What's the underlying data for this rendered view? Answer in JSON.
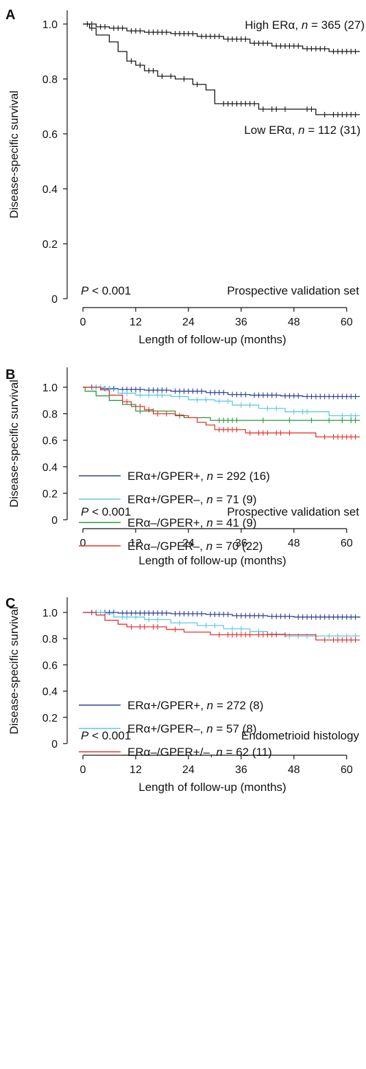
{
  "chart_data": [
    {
      "type": "line",
      "panel": "A",
      "xlabel": "Length of follow-up (months)",
      "ylabel": "Disease-specific survival",
      "xticks": [
        0,
        12,
        24,
        36,
        48,
        60
      ],
      "yticks": [
        "0",
        "0.2",
        "0.4",
        "0.6",
        "0.8",
        "1.0"
      ],
      "xlim": [
        0,
        63
      ],
      "ylim": [
        0,
        1.05
      ],
      "legend": "none",
      "pvalue": {
        "P": "P",
        "text": " < 0.001"
      },
      "set_label": "Prospective validation set",
      "series": [
        {
          "label": {
            "pre": "High ERα, ",
            "n": "n",
            "post": " = 365 (27)"
          },
          "color": "#111111",
          "steps": [
            [
              0,
              1.0
            ],
            [
              3,
              0.99
            ],
            [
              6,
              0.985
            ],
            [
              10,
              0.975
            ],
            [
              14,
              0.97
            ],
            [
              20,
              0.965
            ],
            [
              26,
              0.955
            ],
            [
              32,
              0.945
            ],
            [
              38,
              0.93
            ],
            [
              43,
              0.92
            ],
            [
              50,
              0.91
            ],
            [
              56,
              0.9
            ],
            [
              63,
              0.9
            ]
          ],
          "censor": [
            1,
            2,
            4,
            5,
            7,
            8,
            9,
            11,
            12,
            13,
            15,
            16,
            17,
            18,
            19,
            21,
            22,
            23,
            24,
            25,
            27,
            28,
            29,
            30,
            31,
            33,
            34,
            35,
            36,
            37,
            39,
            40,
            41,
            42,
            44,
            45,
            46,
            47,
            48,
            49,
            51,
            52,
            53,
            54,
            55,
            57,
            58,
            59,
            60,
            61,
            62
          ]
        },
        {
          "label": {
            "pre": "Low ERα, ",
            "n": "n",
            "post": " = 112 (31)"
          },
          "color": "#111111",
          "steps": [
            [
              0,
              1.0
            ],
            [
              1.5,
              0.985
            ],
            [
              3,
              0.96
            ],
            [
              6,
              0.935
            ],
            [
              8,
              0.9
            ],
            [
              10,
              0.865
            ],
            [
              12,
              0.85
            ],
            [
              14,
              0.83
            ],
            [
              17,
              0.81
            ],
            [
              21,
              0.8
            ],
            [
              25,
              0.78
            ],
            [
              28,
              0.76
            ],
            [
              30,
              0.71
            ],
            [
              40,
              0.69
            ],
            [
              53,
              0.67
            ],
            [
              63,
              0.67
            ]
          ],
          "censor": [
            2,
            11,
            13,
            15,
            16,
            18,
            20,
            23,
            26,
            32,
            33,
            34,
            35,
            36,
            37,
            38,
            39,
            41,
            43,
            44,
            46,
            51,
            52,
            55,
            57,
            58,
            59,
            60,
            61,
            62
          ]
        }
      ]
    },
    {
      "type": "line",
      "panel": "B",
      "xlabel": "Length of follow-up (months)",
      "ylabel": "Disease-specific survival",
      "xticks": [
        0,
        12,
        24,
        36,
        48,
        60
      ],
      "yticks": [
        "0",
        "0.2",
        "0.4",
        "0.6",
        "0.8",
        "1.0"
      ],
      "xlim": [
        0,
        63
      ],
      "ylim": [
        0,
        1.05
      ],
      "legend": "lower-left",
      "pvalue": {
        "P": "P",
        "text": " < 0.001"
      },
      "set_label": "Prospective validation set",
      "series": [
        {
          "label": {
            "pre": "ERα+/GPER+, ",
            "n": "n",
            "post": " = 292 (16)"
          },
          "color": "#2b3f95",
          "steps": [
            [
              0,
              1.0
            ],
            [
              4,
              0.99
            ],
            [
              8,
              0.983
            ],
            [
              14,
              0.978
            ],
            [
              20,
              0.97
            ],
            [
              28,
              0.96
            ],
            [
              33,
              0.945
            ],
            [
              38,
              0.94
            ],
            [
              45,
              0.935
            ],
            [
              50,
              0.93
            ],
            [
              63,
              0.93
            ]
          ],
          "censor": [
            2,
            3,
            5,
            6,
            7,
            9,
            10,
            11,
            12,
            13,
            15,
            16,
            17,
            18,
            19,
            21,
            22,
            23,
            24,
            25,
            26,
            27,
            29,
            30,
            31,
            32,
            34,
            35,
            36,
            37,
            39,
            40,
            41,
            42,
            43,
            44,
            46,
            47,
            48,
            49,
            51,
            52,
            53,
            54,
            55,
            56,
            57,
            58,
            59,
            60,
            61,
            62
          ]
        },
        {
          "label": {
            "pre": "ERα+/GPER–, ",
            "n": "n",
            "post": " = 71 (9)"
          },
          "color": "#5ec8e5",
          "steps": [
            [
              0,
              1.0
            ],
            [
              5,
              0.985
            ],
            [
              8,
              0.955
            ],
            [
              12,
              0.94
            ],
            [
              20,
              0.93
            ],
            [
              24,
              0.905
            ],
            [
              30,
              0.895
            ],
            [
              34,
              0.865
            ],
            [
              40,
              0.84
            ],
            [
              46,
              0.815
            ],
            [
              56,
              0.785
            ],
            [
              63,
              0.785
            ]
          ],
          "censor": [
            3,
            4,
            6,
            9,
            10,
            13,
            15,
            17,
            18,
            22,
            26,
            28,
            31,
            33,
            36,
            38,
            42,
            44,
            48,
            50,
            51,
            59,
            61,
            62
          ]
        },
        {
          "label": {
            "pre": "ERα–/GPER+, ",
            "n": "n",
            "post": " = 41 (9)"
          },
          "color": "#239b3c",
          "steps": [
            [
              0,
              1.0
            ],
            [
              0.5,
              0.97
            ],
            [
              3,
              0.935
            ],
            [
              6,
              0.9
            ],
            [
              9,
              0.87
            ],
            [
              12,
              0.82
            ],
            [
              21,
              0.79
            ],
            [
              23,
              0.77
            ],
            [
              29,
              0.75
            ],
            [
              63,
              0.75
            ]
          ],
          "censor": [
            13,
            16,
            31,
            32,
            33,
            34,
            35,
            41,
            47,
            52,
            56,
            59,
            61,
            62
          ]
        },
        {
          "label": {
            "pre": "ERα–/GPER–, ",
            "n": "n",
            "post": " = 70 (22)"
          },
          "color": "#e8312b",
          "steps": [
            [
              0,
              1.0
            ],
            [
              4,
              0.98
            ],
            [
              6,
              0.94
            ],
            [
              9,
              0.89
            ],
            [
              11,
              0.855
            ],
            [
              14,
              0.83
            ],
            [
              16,
              0.8
            ],
            [
              21,
              0.785
            ],
            [
              24,
              0.77
            ],
            [
              26,
              0.735
            ],
            [
              28,
              0.715
            ],
            [
              30,
              0.68
            ],
            [
              37,
              0.655
            ],
            [
              53,
              0.625
            ],
            [
              63,
              0.625
            ]
          ],
          "censor": [
            10,
            13,
            15,
            17,
            19,
            22,
            31,
            32,
            33,
            34,
            35,
            38,
            40,
            41,
            42,
            44,
            45,
            47,
            55,
            57,
            58,
            59,
            60,
            61,
            62
          ]
        }
      ]
    },
    {
      "type": "line",
      "panel": "C",
      "xlabel": "Length of follow-up (months)",
      "ylabel": "Disease-specific survival",
      "xticks": [
        0,
        12,
        24,
        36,
        48,
        60
      ],
      "yticks": [
        "0",
        "0.2",
        "0.4",
        "0.6",
        "0.8",
        "1.0"
      ],
      "xlim": [
        0,
        63
      ],
      "ylim": [
        0,
        1.05
      ],
      "legend": "lower-left",
      "pvalue": {
        "P": "P",
        "text": " < 0.001"
      },
      "set_label": "Endometrioid histology",
      "series": [
        {
          "label": {
            "pre": "ERα+/GPER+, ",
            "n": "n",
            "post": " = 272 (8)"
          },
          "color": "#2b3f95",
          "steps": [
            [
              0,
              1.0
            ],
            [
              8,
              0.995
            ],
            [
              20,
              0.99
            ],
            [
              28,
              0.985
            ],
            [
              34,
              0.975
            ],
            [
              42,
              0.97
            ],
            [
              48,
              0.965
            ],
            [
              63,
              0.96
            ]
          ],
          "censor": [
            2,
            3,
            5,
            6,
            7,
            9,
            10,
            11,
            12,
            13,
            14,
            15,
            16,
            17,
            18,
            19,
            21,
            22,
            23,
            24,
            25,
            26,
            27,
            29,
            30,
            31,
            32,
            33,
            35,
            36,
            37,
            38,
            39,
            40,
            41,
            43,
            44,
            45,
            46,
            47,
            49,
            50,
            51,
            52,
            53,
            54,
            55,
            56,
            57,
            58,
            59,
            60,
            61,
            62
          ]
        },
        {
          "label": {
            "pre": "ERα+/GPER–, ",
            "n": "n",
            "post": " = 57 (8)"
          },
          "color": "#5ec8e5",
          "steps": [
            [
              0,
              1.0
            ],
            [
              5,
              0.99
            ],
            [
              7,
              0.965
            ],
            [
              14,
              0.945
            ],
            [
              20,
              0.92
            ],
            [
              26,
              0.9
            ],
            [
              32,
              0.875
            ],
            [
              38,
              0.855
            ],
            [
              42,
              0.835
            ],
            [
              46,
              0.82
            ],
            [
              63,
              0.82
            ]
          ],
          "censor": [
            3,
            4,
            9,
            10,
            12,
            15,
            17,
            22,
            28,
            30,
            34,
            36,
            40,
            44,
            47,
            49,
            51,
            53,
            56,
            58,
            60,
            62
          ]
        },
        {
          "label": {
            "pre": "ERα–/GPER+/–, ",
            "n": "n",
            "post": " = 62 (11)"
          },
          "color": "#e8312b",
          "steps": [
            [
              0,
              1.0
            ],
            [
              3,
              0.98
            ],
            [
              5,
              0.94
            ],
            [
              8,
              0.91
            ],
            [
              10,
              0.89
            ],
            [
              19,
              0.87
            ],
            [
              23,
              0.85
            ],
            [
              29,
              0.83
            ],
            [
              53,
              0.79
            ],
            [
              63,
              0.79
            ]
          ],
          "censor": [
            11,
            13,
            14,
            16,
            17,
            21,
            31,
            33,
            34,
            35,
            36,
            37,
            38,
            40,
            41,
            42,
            43,
            44,
            46,
            55,
            57,
            58,
            59,
            60,
            61,
            62
          ]
        }
      ]
    }
  ]
}
